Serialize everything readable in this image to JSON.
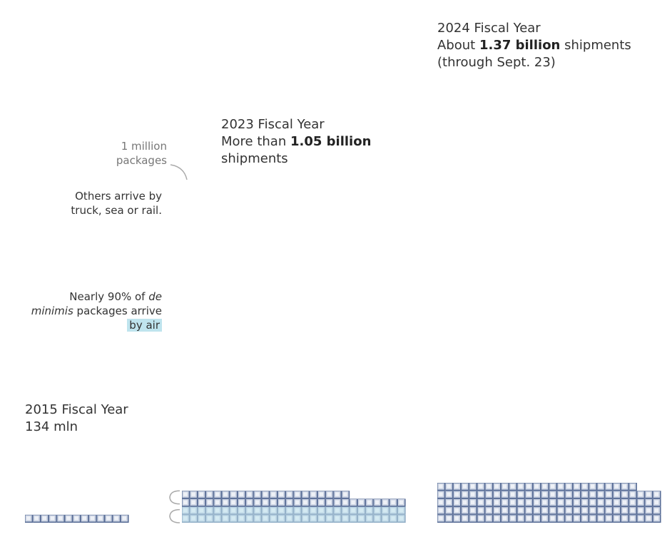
{
  "colors": {
    "box_fill": "#cdd5e4",
    "box_side": "#5b6f98",
    "box_highlight": "#eef1f7",
    "air_tint": "#bfe4ee",
    "bracket": "#aaaaaa"
  },
  "chart_data": {
    "type": "unit",
    "unit": "1 million packages",
    "series": [
      {
        "name": "2015 Fiscal Year",
        "value": 134
      },
      {
        "name": "2023 Fiscal Year",
        "value": 1050
      },
      {
        "name": "2024 Fiscal Year",
        "value": 1370
      }
    ],
    "air_share_2023": 0.9
  },
  "labels": {
    "fy2015": {
      "title": "2015 Fiscal Year",
      "value": "134 mln"
    },
    "fy2023": {
      "title": "2023 Fiscal Year",
      "prefix": "More than ",
      "bold": "1.05 billion",
      "suffix": "shipments"
    },
    "fy2024": {
      "title": "2024 Fiscal Year",
      "prefix": "About ",
      "bold": "1.37 billion",
      "suffix": " shipments",
      "note": "(through Sept. 23)"
    }
  },
  "annotations": {
    "unit_line1": "1 million",
    "unit_line2": "packages",
    "others_line1": "Others arrive by",
    "others_line2": "truck, sea or rail.",
    "air_line1": "Nearly 90% of ",
    "air_line1_italic": "de",
    "air_line2_italic": "minimis",
    "air_line2": " packages arrive",
    "air_line3": "by air"
  }
}
